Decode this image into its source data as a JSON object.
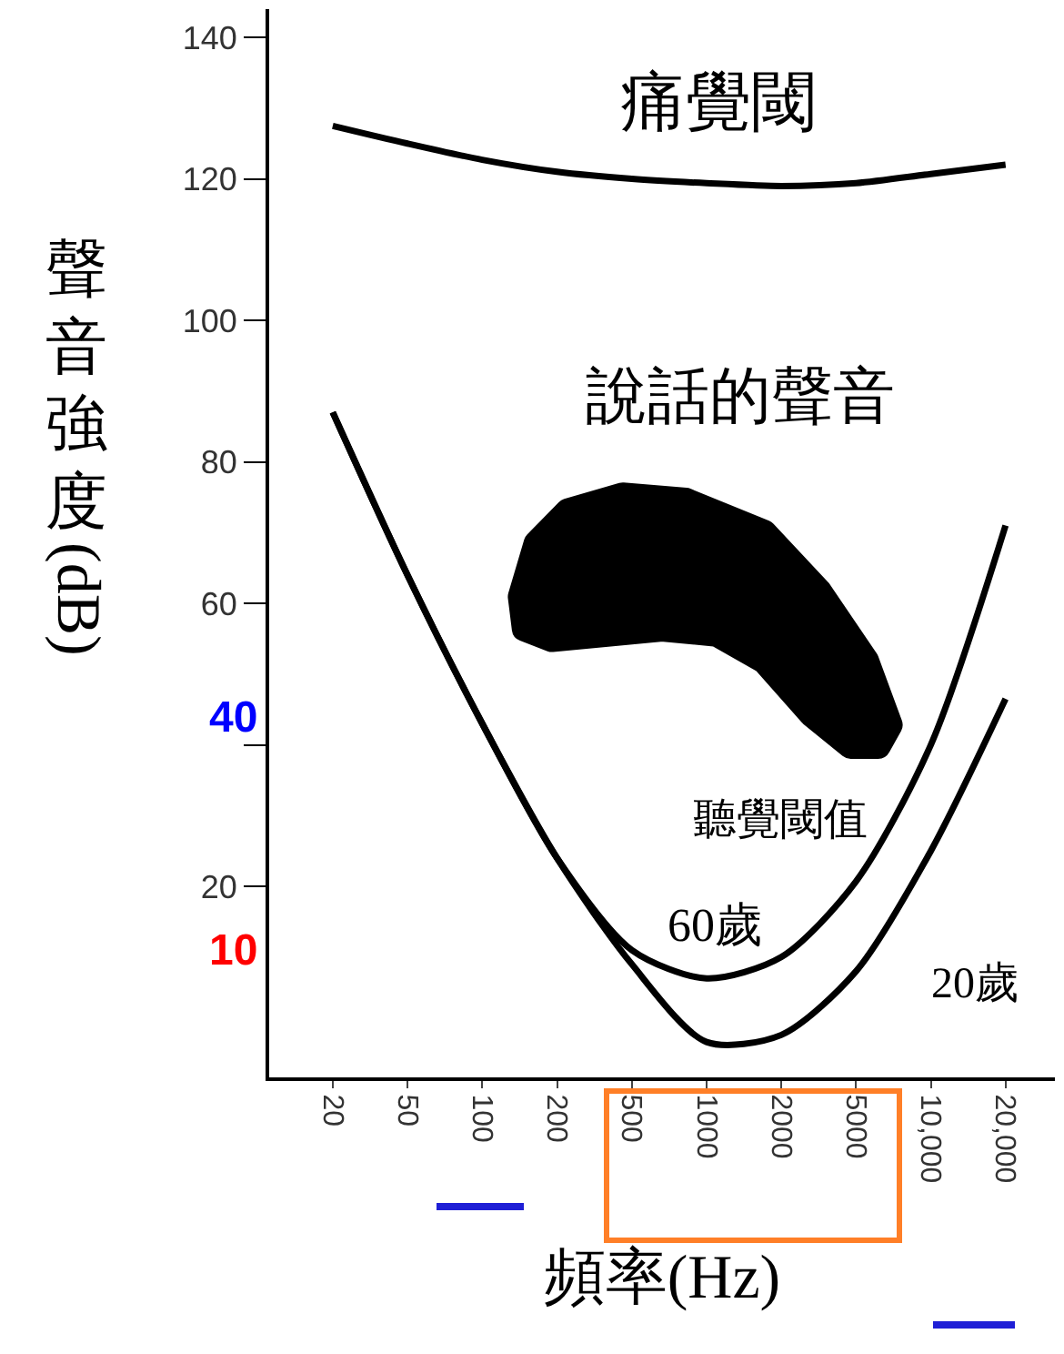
{
  "chart_data": {
    "type": "line",
    "ylabel": "聲音強度 (dB)",
    "xlabel": "頻率(Hz)",
    "categories": [
      "20",
      "50",
      "100",
      "200",
      "500",
      "1000",
      "2000",
      "5000",
      "10,000",
      "20,000"
    ],
    "series": [
      {
        "name": "痛覺閾",
        "color": "#000000",
        "values": [
          127.5,
          125,
          122.7,
          121,
          120,
          119.4,
          119,
          119.4,
          120.7,
          122
        ]
      },
      {
        "name": "60歲",
        "color": "#000000",
        "values": [
          87,
          64,
          43,
          24,
          11,
          7,
          10,
          20.7,
          40,
          71
        ]
      },
      {
        "name": "20歲",
        "color": "#000000",
        "values": [
          87,
          64,
          43,
          24,
          9,
          -2,
          -1,
          8,
          25,
          46.5
        ]
      }
    ],
    "annotations": [
      "說話的聲音",
      "聽覺閾值",
      "40",
      "10"
    ],
    "ylim": [
      -7,
      144
    ],
    "yticks": [
      20,
      {
        "value": 40,
        "label": null
      },
      60,
      80,
      100,
      120,
      140
    ],
    "grid": false,
    "legend": false,
    "marker": "none",
    "line_style": "solid"
  }
}
